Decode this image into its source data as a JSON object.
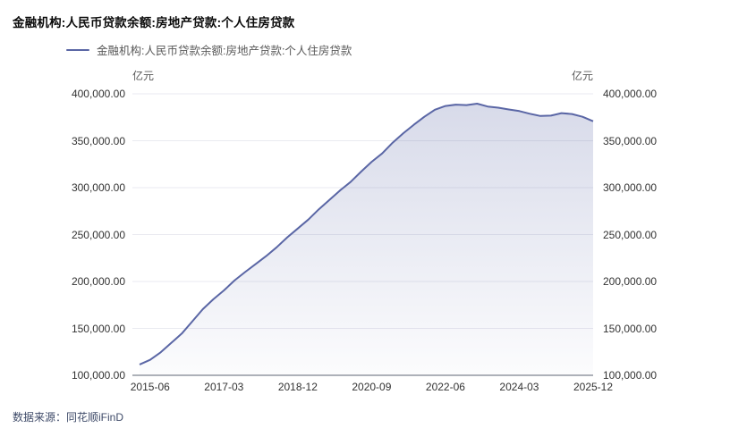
{
  "title": "金融机构:人民币贷款余额:房地产贷款:个人住房贷款",
  "legend": {
    "label": "金融机构:人民币贷款余额:房地产贷款:个人住房贷款"
  },
  "axis_units": {
    "left": "亿元",
    "right": "亿元"
  },
  "source": {
    "label": "数据来源：同花顺iFinD"
  },
  "colors": {
    "line": "#5a66a5",
    "area_top": "rgba(90,102,165,0.24)",
    "area_bottom": "rgba(90,102,165,0.02)",
    "grid": "#e9eaf0",
    "axis_line": "#5d6473",
    "tick_text": "#333333",
    "legend_text": "#595959",
    "source_text": "#3e4a68",
    "title_text": "#0a0a0a"
  },
  "chart_data": {
    "type": "area",
    "title": "金融机构:人民币贷款余额:房地产贷款:个人住房贷款",
    "ylabel": "亿元",
    "ylim": [
      100000,
      400000
    ],
    "grid": true,
    "legend_position": "top-left",
    "x": [
      "2015-03",
      "2015-06",
      "2015-09",
      "2015-12",
      "2016-03",
      "2016-06",
      "2016-09",
      "2016-12",
      "2017-03",
      "2017-06",
      "2017-09",
      "2017-12",
      "2018-03",
      "2018-06",
      "2018-09",
      "2018-12",
      "2019-03",
      "2019-06",
      "2019-09",
      "2019-12",
      "2020-03",
      "2020-06",
      "2020-09",
      "2020-12",
      "2021-03",
      "2021-06",
      "2021-09",
      "2021-12",
      "2022-03",
      "2022-06",
      "2022-09",
      "2022-12",
      "2023-03",
      "2023-06",
      "2023-09",
      "2023-12",
      "2024-03",
      "2024-06",
      "2024-09",
      "2024-12",
      "2025-03",
      "2025-06",
      "2025-09",
      "2025-12"
    ],
    "series": [
      {
        "name": "金融机构:人民币贷款余额:房地产贷款:个人住房贷款",
        "values": [
          111500,
          116500,
          124500,
          134500,
          144500,
          157500,
          170500,
          181000,
          190500,
          201000,
          210000,
          218500,
          227000,
          236500,
          247000,
          256500,
          266000,
          277000,
          287000,
          297000,
          306000,
          317000,
          327500,
          336500,
          348000,
          358000,
          367000,
          375500,
          383000,
          387000,
          388500,
          388000,
          389500,
          386500,
          385200,
          383300,
          381600,
          378800,
          376400,
          376800,
          379400,
          378500,
          375500,
          370800
        ]
      }
    ],
    "x_tick_indices": [
      1,
      8,
      15,
      22,
      29,
      36,
      43
    ],
    "x_tick_labels": [
      "2015-06",
      "2017-03",
      "2018-12",
      "2020-09",
      "2022-06",
      "2024-03",
      "2025-12"
    ],
    "y_ticks": [
      100000,
      150000,
      200000,
      250000,
      300000,
      350000,
      400000
    ],
    "y_tick_labels": [
      "100,000.00",
      "150,000.00",
      "200,000.00",
      "250,000.00",
      "300,000.00",
      "350,000.00",
      "400,000.00"
    ]
  }
}
